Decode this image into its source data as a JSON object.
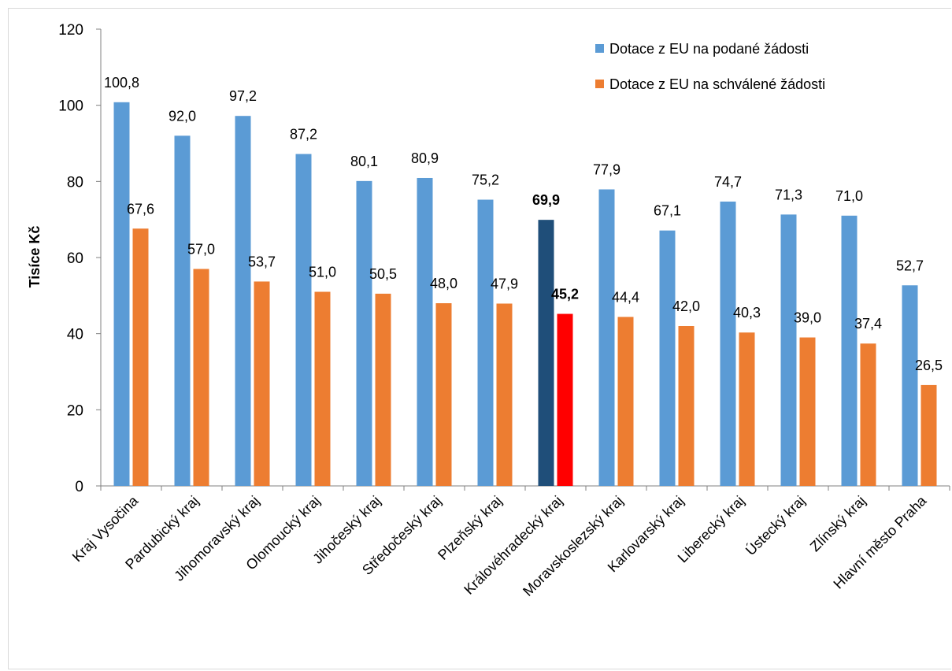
{
  "chart_data": {
    "type": "bar",
    "ylabel": "Tisíce Kč",
    "ylim": [
      0,
      120
    ],
    "yticks": [
      0,
      20,
      40,
      60,
      80,
      100,
      120
    ],
    "grid": false,
    "legend_position": "top-right",
    "categories": [
      "Kraj Vysočina",
      "Pardubický kraj",
      "Jihomoravský kraj",
      "Olomoucký kraj",
      "Jihočeský kraj",
      "Středočeský kraj",
      "Plzeňský kraj",
      "Královéhradecký kraj",
      "Moravskoslezský kraj",
      "Karlovarský kraj",
      "Liberecký kraj",
      "Ústecký kraj",
      "Zlínský kraj",
      "Hlavní město Praha"
    ],
    "series": [
      {
        "name": "Dotace z EU na podané žádosti",
        "color": "#5b9bd5",
        "highlight_color": "#1f4e79",
        "values": [
          100.8,
          92.0,
          97.2,
          87.2,
          80.1,
          80.9,
          75.2,
          69.9,
          77.9,
          67.1,
          74.7,
          71.3,
          71.0,
          52.7
        ],
        "labels": [
          "100,8",
          "92,0",
          "97,2",
          "87,2",
          "80,1",
          "80,9",
          "75,2",
          "69,9",
          "77,9",
          "67,1",
          "74,7",
          "71,3",
          "71,0",
          "52,7"
        ]
      },
      {
        "name": "Dotace z EU na schválené žádosti",
        "color": "#ed7d31",
        "highlight_color": "#ff0000",
        "values": [
          67.6,
          57.0,
          53.7,
          51.0,
          50.5,
          48.0,
          47.9,
          45.2,
          44.4,
          42.0,
          40.3,
          39.0,
          37.4,
          26.5
        ],
        "labels": [
          "67,6",
          "57,0",
          "53,7",
          "51,0",
          "50,5",
          "48,0",
          "47,9",
          "45,2",
          "44,4",
          "42,0",
          "40,3",
          "39,0",
          "37,4",
          "26,5"
        ]
      }
    ],
    "highlight_category": "Královéhradecký kraj"
  }
}
